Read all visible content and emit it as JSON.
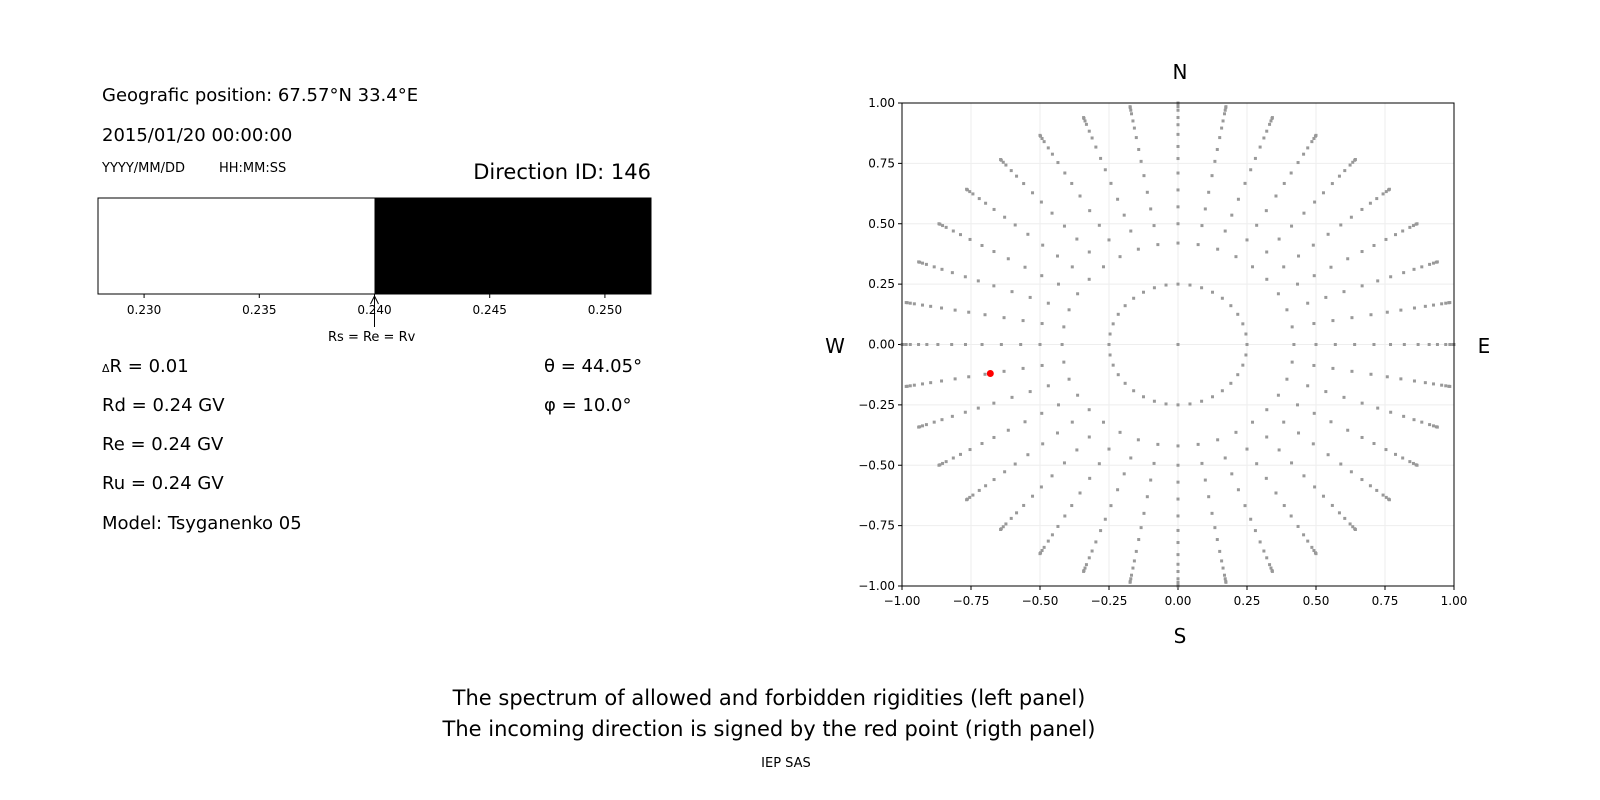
{
  "left_panel": {
    "position": "Geografic position: 67.57°N 33.4°E",
    "datetime": "2015/01/20 00:00:00",
    "date_format": "YYYY/MM/DD",
    "time_format": "HH:MM:SS",
    "direction_id": "Direction ID: 146",
    "delta_r": "R = 0.01",
    "delta_symbol": "Δ",
    "rd": "Rd = 0.24 GV",
    "re": "Re = 0.24 GV",
    "ru": "Ru = 0.24 GV",
    "model": "Model: Tsyganenko 05",
    "theta": "θ = 44.05°",
    "phi": "φ = 10.0°",
    "arrow_label": "Rs = Re = Rv"
  },
  "captions": {
    "line1": "The spectrum of allowed and forbidden rigidities (left panel)",
    "line2": "The incoming direction is signed by the red point (rigth panel)",
    "credit": "IEP SAS"
  },
  "chart_data": [
    {
      "type": "bar",
      "description_of_marks": "rigidity spectrum: allowed (white) below threshold, forbidden (black) above",
      "xlim": [
        0.228,
        0.252
      ],
      "xticks": [
        "0.230",
        "0.235",
        "0.240",
        "0.245",
        "0.250"
      ],
      "threshold": 0.24,
      "colors": {
        "allowed": "#ffffff",
        "forbidden": "#000000"
      }
    },
    {
      "type": "scatter",
      "xlim": [
        -1.0,
        1.0
      ],
      "ylim": [
        -1.0,
        1.0
      ],
      "xticks": [
        "−1.00",
        "−0.75",
        "−0.50",
        "−0.25",
        "0.00",
        "0.25",
        "0.50",
        "0.75",
        "1.00"
      ],
      "yticks": [
        "−1.00",
        "−0.75",
        "−0.50",
        "−0.25",
        "0.00",
        "0.25",
        "0.50",
        "0.75",
        "1.00"
      ],
      "grid": true,
      "compass": {
        "north": "N",
        "south": "S",
        "west": "W",
        "east": "E"
      },
      "spoke_azimuths_deg_step": 10,
      "inner_ring_radius": 0.25,
      "spoke_radii": [
        0.42,
        0.5,
        0.57,
        0.64,
        0.71,
        0.77,
        0.82,
        0.87,
        0.91,
        0.94,
        0.97,
        0.985,
        0.996,
        1.0
      ],
      "center_point": [
        0,
        0
      ],
      "highlight_point": {
        "x": -0.68,
        "y": -0.12,
        "color": "#ff0000"
      },
      "point_color": "#999999"
    }
  ]
}
